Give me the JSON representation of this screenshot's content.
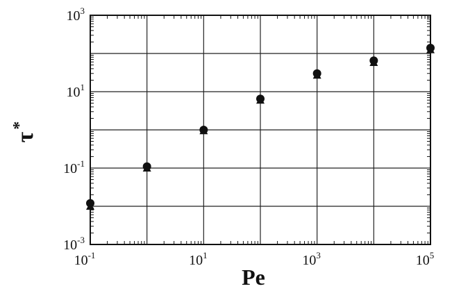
{
  "chart_data": {
    "type": "scatter",
    "title": "",
    "xlabel": "Pe",
    "ylabel": "τ",
    "ylabel_superscript": "*",
    "x_scale": "log",
    "y_scale": "log",
    "xlim": [
      0.1,
      100000
    ],
    "ylim": [
      0.001,
      1000
    ],
    "grid": true,
    "x_ticks": [
      {
        "base": "10",
        "exp": "-1",
        "value": 0.1
      },
      {
        "base": "10",
        "exp": "1",
        "value": 10
      },
      {
        "base": "10",
        "exp": "3",
        "value": 1000
      },
      {
        "base": "10",
        "exp": "5",
        "value": 100000
      }
    ],
    "y_ticks": [
      {
        "base": "10",
        "exp": "3",
        "value": 1000
      },
      {
        "base": "10",
        "exp": "1",
        "value": 10
      },
      {
        "base": "10",
        "exp": "-1",
        "value": 0.1
      },
      {
        "base": "10",
        "exp": "-3",
        "value": 0.001
      }
    ],
    "series": [
      {
        "marker": "circle",
        "color": "#111111",
        "points": [
          {
            "x": 0.1,
            "y": 0.012
          },
          {
            "x": 1,
            "y": 0.11
          },
          {
            "x": 10,
            "y": 1.0
          },
          {
            "x": 100,
            "y": 6.5
          },
          {
            "x": 1000,
            "y": 30
          },
          {
            "x": 10000,
            "y": 65
          },
          {
            "x": 100000,
            "y": 140
          }
        ]
      },
      {
        "marker": "triangle",
        "color": "#111111",
        "points": [
          {
            "x": 0.1,
            "y": 0.01
          },
          {
            "x": 1,
            "y": 0.1
          },
          {
            "x": 10,
            "y": 0.95
          },
          {
            "x": 100,
            "y": 6.0
          },
          {
            "x": 1000,
            "y": 27
          },
          {
            "x": 10000,
            "y": 58
          },
          {
            "x": 100000,
            "y": 125
          }
        ]
      }
    ]
  }
}
